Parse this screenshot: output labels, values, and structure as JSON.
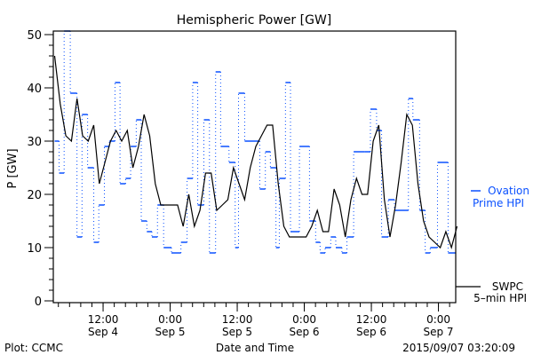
{
  "chart_data": {
    "type": "line",
    "title": "Hemispheric Power [GW]",
    "xlabel": "Date and Time",
    "ylabel": "P [GW]",
    "ylim": [
      0,
      50
    ],
    "yticks": [
      "0",
      "10",
      "20",
      "30",
      "40",
      "50"
    ],
    "x_units": "hours since 2015-09-04 03:20",
    "xlim": [
      0,
      72
    ],
    "xticks": [
      {
        "t": 8.67,
        "time": "12:00",
        "date": "Sep 4"
      },
      {
        "t": 20.67,
        "time": "0:00",
        "date": "Sep 5"
      },
      {
        "t": 32.67,
        "time": "12:00",
        "date": "Sep 5"
      },
      {
        "t": 44.67,
        "time": "0:00",
        "date": "Sep 6"
      },
      {
        "t": 56.67,
        "time": "12:00",
        "date": "Sep 6"
      },
      {
        "t": 68.67,
        "time": "0:00",
        "date": "Sep 7"
      }
    ],
    "series": [
      {
        "name": "SWPC 5-min HPI",
        "legend": [
          "SWPC",
          "5–min HPI"
        ],
        "color": "#000000",
        "style": "solid",
        "t_step_hours": 1,
        "values": [
          46,
          37,
          31,
          30,
          38,
          31,
          30,
          33,
          22,
          26,
          30,
          32,
          30,
          32,
          25,
          29,
          35,
          31,
          22,
          18,
          18,
          18,
          18,
          14,
          20,
          14,
          17,
          24,
          24,
          17,
          18,
          19,
          25,
          22,
          19,
          25,
          29,
          31,
          33,
          33,
          22,
          14,
          12,
          12,
          12,
          12,
          14,
          17,
          13,
          13,
          21,
          18,
          12,
          19,
          23,
          20,
          20,
          30,
          33,
          19,
          12,
          18,
          26,
          35,
          33,
          22,
          15,
          12,
          11,
          10,
          13,
          10,
          14
        ]
      },
      {
        "name": "Ovation Prime HPI",
        "legend": [
          "Ovation",
          "Prime HPI"
        ],
        "color": "#0a50ff",
        "style": "step-dotted",
        "steps": [
          [
            0,
            30
          ],
          [
            0.8,
            24
          ],
          [
            1.7,
            52
          ],
          [
            2.8,
            39
          ],
          [
            4.0,
            12
          ],
          [
            4.9,
            35
          ],
          [
            5.9,
            25
          ],
          [
            7.0,
            11
          ],
          [
            7.9,
            18
          ],
          [
            8.9,
            29
          ],
          [
            9.8,
            30
          ],
          [
            10.8,
            41
          ],
          [
            11.7,
            22
          ],
          [
            12.7,
            23
          ],
          [
            13.6,
            29
          ],
          [
            14.6,
            34
          ],
          [
            15.5,
            15
          ],
          [
            16.5,
            13
          ],
          [
            17.4,
            12
          ],
          [
            18.4,
            18
          ],
          [
            19.5,
            10
          ],
          [
            20.9,
            9
          ],
          [
            22.6,
            11
          ],
          [
            23.7,
            23
          ],
          [
            24.7,
            41
          ],
          [
            25.6,
            18
          ],
          [
            26.7,
            34
          ],
          [
            27.7,
            9
          ],
          [
            28.8,
            43
          ],
          [
            29.7,
            29
          ],
          [
            31.2,
            26
          ],
          [
            32.3,
            10
          ],
          [
            32.9,
            39
          ],
          [
            34.0,
            30
          ],
          [
            36.7,
            21
          ],
          [
            37.7,
            28
          ],
          [
            38.6,
            25
          ],
          [
            39.6,
            10
          ],
          [
            40.2,
            23
          ],
          [
            41.3,
            41
          ],
          [
            42.2,
            13
          ],
          [
            43.8,
            29
          ],
          [
            45.6,
            15
          ],
          [
            46.7,
            11
          ],
          [
            47.5,
            9
          ],
          [
            48.4,
            10
          ],
          [
            49.4,
            12
          ],
          [
            50.3,
            10
          ],
          [
            51.4,
            9
          ],
          [
            52.3,
            12
          ],
          [
            53.5,
            28
          ],
          [
            55.5,
            28
          ],
          [
            56.5,
            36
          ],
          [
            57.6,
            32
          ],
          [
            58.5,
            12
          ],
          [
            59.7,
            19
          ],
          [
            60.8,
            17
          ],
          [
            63.3,
            38
          ],
          [
            64.1,
            34
          ],
          [
            65.3,
            17
          ],
          [
            66.3,
            9
          ],
          [
            67.2,
            10
          ],
          [
            68.5,
            26
          ],
          [
            70.4,
            9
          ]
        ],
        "t_end": 71.7
      }
    ],
    "legend_placement": "right"
  },
  "footer": {
    "left": "Plot: CCMC",
    "right": "2015/09/07 03:20:09"
  }
}
